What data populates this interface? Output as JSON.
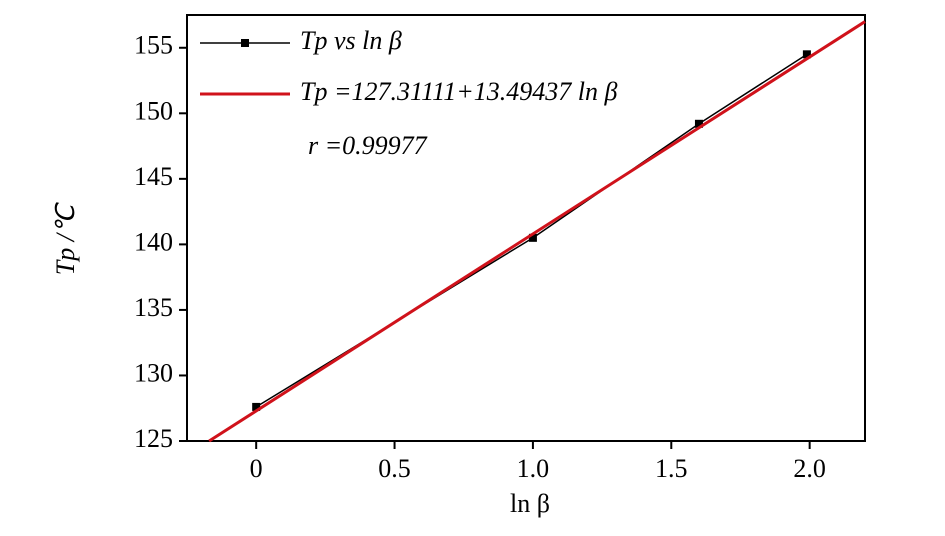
{
  "chart_data": {
    "type": "line",
    "xlabel": "ln β",
    "ylabel": "Tp /℃",
    "xlim": [
      -0.25,
      2.2
    ],
    "ylim": [
      125,
      157.5
    ],
    "xticks": [
      0,
      0.5,
      {
        "value": 1,
        "label": "1.0"
      },
      1.5,
      {
        "value": 2,
        "label": "2.0"
      }
    ],
    "yticks": [
      125,
      130,
      135,
      140,
      145,
      150,
      155
    ],
    "series": [
      {
        "name": "Tp vs ln β",
        "color": "#000000",
        "marker": "square",
        "x": [
          0,
          1,
          1.6,
          1.99
        ],
        "values": [
          127.6,
          140.5,
          149.2,
          154.5
        ]
      },
      {
        "name": "Tp =127.31111+13.49437 ln β",
        "color": "#d0121b",
        "marker": "none",
        "x": [
          -0.17,
          2.2
        ],
        "values": [
          125.0,
          157.0
        ]
      }
    ],
    "annotation": "r =0.99977"
  }
}
